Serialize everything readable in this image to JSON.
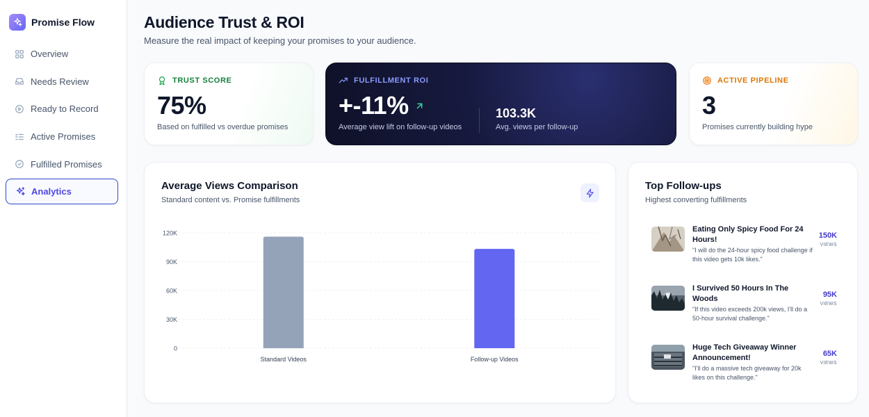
{
  "app": {
    "name": "Promise Flow"
  },
  "sidebar": {
    "items": [
      {
        "label": "Overview",
        "icon": "grid-icon",
        "active": false
      },
      {
        "label": "Needs Review",
        "icon": "inbox-icon",
        "active": false
      },
      {
        "label": "Ready to Record",
        "icon": "play-circle-icon",
        "active": false
      },
      {
        "label": "Active Promises",
        "icon": "list-check-icon",
        "active": false
      },
      {
        "label": "Fulfilled Promises",
        "icon": "check-circle-icon",
        "active": false
      },
      {
        "label": "Analytics",
        "icon": "sparkles-icon",
        "active": true
      }
    ]
  },
  "header": {
    "title": "Audience Trust & ROI",
    "subtitle": "Measure the real impact of keeping your promises to your audience."
  },
  "stats": {
    "trust": {
      "label": "TRUST SCORE",
      "value": "75%",
      "desc": "Based on fulfilled vs overdue promises",
      "color": "#16a34a"
    },
    "roi": {
      "label": "FULFILLMENT ROI",
      "value": "+-11%",
      "desc": "Average view lift on follow-up videos",
      "value2": "103.3K",
      "desc2": "Avg. views per follow-up",
      "color": "#8b9bff",
      "arrow_color": "#34d399"
    },
    "pipeline": {
      "label": "ACTIVE PIPELINE",
      "value": "3",
      "desc": "Promises currently building hype",
      "color": "#d97706"
    }
  },
  "chart_card": {
    "title": "Average Views Comparison",
    "subtitle": "Standard content vs. Promise fulfillments"
  },
  "chart_data": {
    "type": "bar",
    "categories": [
      "Standard Videos",
      "Follow-up Videos"
    ],
    "values": [
      116000,
      103300
    ],
    "colors": [
      "#94a3b8",
      "#6366f1"
    ],
    "ylim": [
      0,
      120000
    ],
    "yticks": [
      "0",
      "30K",
      "60K",
      "90K",
      "120K"
    ],
    "grid": true
  },
  "top_followups": {
    "title": "Top Follow-ups",
    "subtitle": "Highest converting fulfillments",
    "unit": "VIEWS",
    "items": [
      {
        "title": "Eating Only Spicy Food For 24 Hours!",
        "quote": "\"I will do the 24-hour spicy food challenge if this video gets 10k likes.\"",
        "views": "150K"
      },
      {
        "title": "I Survived 50 Hours In The Woods",
        "quote": "\"If this video exceeds 200k views, I'll do a 50-hour survival challenge.\"",
        "views": "95K"
      },
      {
        "title": "Huge Tech Giveaway Winner Announcement!",
        "quote": "\"I'll do a massive tech giveaway for 20k likes on this challenge.\"",
        "views": "65K"
      }
    ]
  }
}
